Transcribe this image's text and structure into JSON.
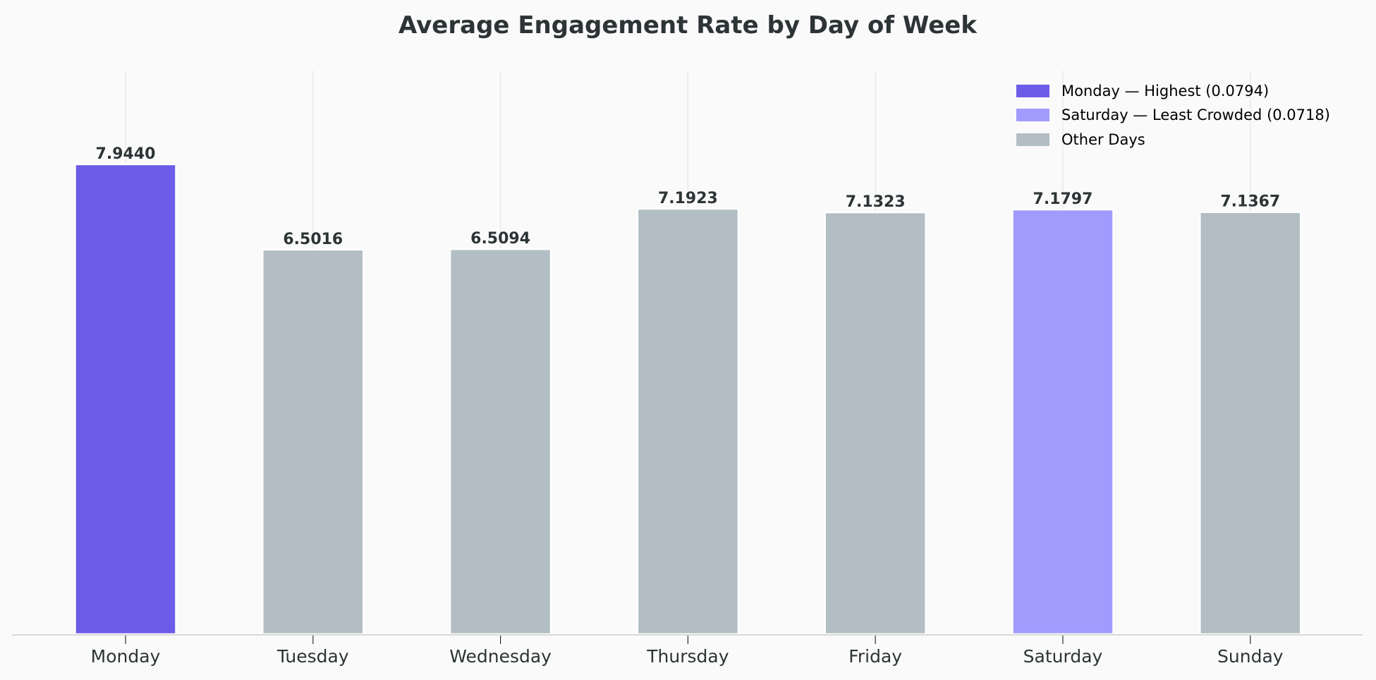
{
  "chart_data": {
    "type": "bar",
    "title": "Average Engagement Rate by Day of Week",
    "xlabel": "",
    "ylabel": "",
    "categories": [
      "Monday",
      "Tuesday",
      "Wednesday",
      "Thursday",
      "Friday",
      "Saturday",
      "Sunday"
    ],
    "values": [
      7.944,
      6.5016,
      6.5094,
      7.1923,
      7.1323,
      7.1797,
      7.1367
    ],
    "data_labels": [
      "7.9440",
      "6.5016",
      "6.5094",
      "7.1923",
      "7.1323",
      "7.1797",
      "7.1367"
    ],
    "bar_groups": [
      "highest",
      "other",
      "other",
      "other",
      "other",
      "least",
      "other"
    ],
    "ylim": [
      0,
      9.53
    ],
    "grid": "vertical lines at categories",
    "legend_placement": "top-right",
    "legend": [
      {
        "label": "Monday — Highest (0.0794)",
        "group": "highest",
        "color": "#6c5ce7"
      },
      {
        "label": "Saturday — Least Crowded (0.0718)",
        "group": "least",
        "color": "#a29bfe"
      },
      {
        "label": "Other Days",
        "group": "other",
        "color": "#b2bec3"
      }
    ],
    "colors": {
      "highest": "#6c5ce7",
      "least": "#a29bfe",
      "other": "#b2bec3",
      "text": "#2d3436",
      "background": "#fafafa"
    }
  }
}
